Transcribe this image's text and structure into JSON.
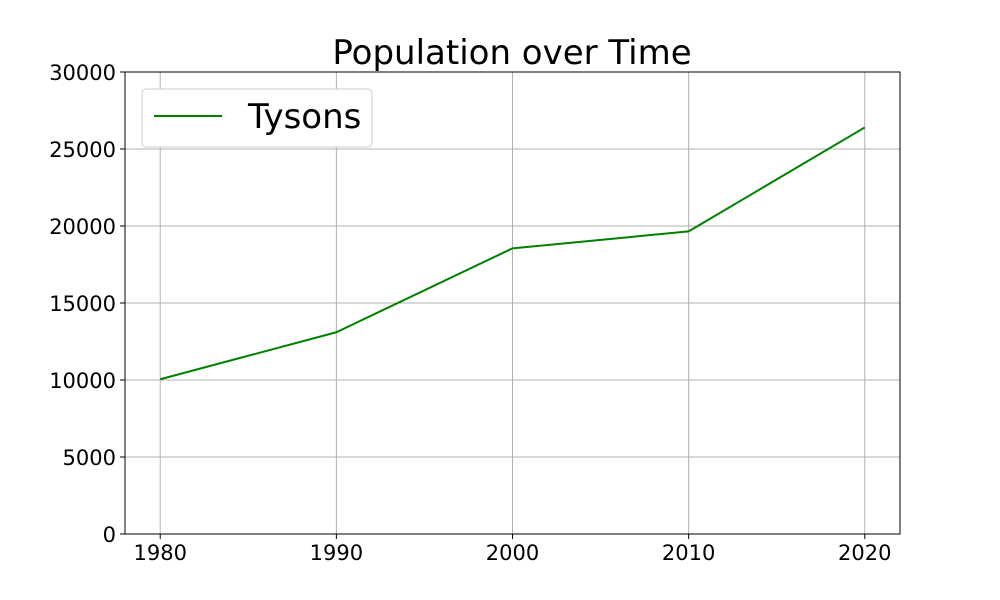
{
  "chart_data": {
    "type": "line",
    "title": "Population over Time",
    "xlabel": "",
    "ylabel": "",
    "x": [
      1980,
      1990,
      2000,
      2010,
      2020
    ],
    "xticks": [
      "1980",
      "1990",
      "2000",
      "2010",
      "2020"
    ],
    "xlim": [
      1978,
      2022
    ],
    "ylim": [
      0,
      30000
    ],
    "yticks": [
      "0",
      "5000",
      "10000",
      "15000",
      "20000",
      "25000",
      "30000"
    ],
    "grid": true,
    "legend_position": "top-left",
    "series": [
      {
        "name": "Tysons",
        "color": "#008000",
        "values": [
          10050,
          13100,
          18550,
          19650,
          26400
        ]
      }
    ]
  }
}
